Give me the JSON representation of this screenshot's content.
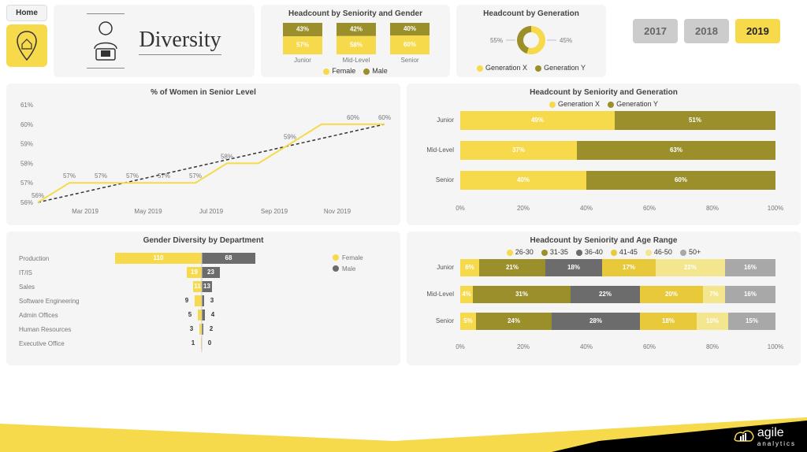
{
  "colors": {
    "yellow": "#f7d94c",
    "olive": "#9a8f2a",
    "gray": "#6c6c6c",
    "lightgray": "#a8a8a8",
    "bg": "#f5f5f5",
    "pale_yellow": "#f4e58f",
    "yellow2": "#e8c93a"
  },
  "nav": {
    "home_label": "Home"
  },
  "title": "Diversity",
  "years": {
    "options": [
      "2017",
      "2018",
      "2019"
    ],
    "active": "2019"
  },
  "seniority_gender": {
    "title": "Headcount by Seniority and Gender",
    "categories": [
      "Junior",
      "Mid-Level",
      "Senior"
    ],
    "male": [
      43,
      42,
      40
    ],
    "female": [
      57,
      58,
      60
    ],
    "legend": [
      "Female",
      "Male"
    ],
    "male_color": "#9a8f2a",
    "female_color": "#f7d94c"
  },
  "generation_donut": {
    "title": "Headcount by Generation",
    "left_pct": 55,
    "right_pct": 45,
    "legend": [
      "Generation X",
      "Generation Y"
    ],
    "x_color": "#f7d94c",
    "y_color": "#9a8f2a"
  },
  "women_senior": {
    "title": "% of Women in Senior Level",
    "ymin": 56,
    "ymax": 61,
    "ystep": 1,
    "months": [
      "",
      "Mar 2019",
      "",
      "May 2019",
      "",
      "Jul 2019",
      "",
      "Sep 2019",
      "",
      "Nov 2019",
      ""
    ],
    "values": [
      56,
      57,
      57,
      57,
      57,
      57,
      58,
      58,
      59,
      60,
      60,
      60
    ],
    "labels": [
      "56%",
      "57%",
      "57%",
      "57%",
      "57%",
      "57%",
      "58%",
      "",
      "59%",
      "",
      "60%",
      "60%"
    ],
    "line_color": "#f7d94c"
  },
  "seniority_generation": {
    "title": "Headcount by Seniority and Generation",
    "legend": [
      "Generation X",
      "Generation Y"
    ],
    "categories": [
      "Junior",
      "Mid-Level",
      "Senior"
    ],
    "genx": [
      49,
      37,
      40
    ],
    "geny": [
      51,
      63,
      60
    ],
    "x_color": "#f7d94c",
    "y_color": "#9a8f2a",
    "xticks": [
      0,
      20,
      40,
      60,
      80,
      100
    ]
  },
  "gender_dept": {
    "title": "Gender Diversity by Department",
    "legend": [
      "Female",
      "Male"
    ],
    "female_color": "#f7d94c",
    "male_color": "#6c6c6c",
    "categories": [
      "Production",
      "IT/IS",
      "Sales",
      "Software Engineering",
      "Admin Offices",
      "Human Resources",
      "Executive Office"
    ],
    "female": [
      110,
      19,
      11,
      9,
      5,
      3,
      1
    ],
    "male": [
      68,
      23,
      13,
      3,
      4,
      2,
      0
    ]
  },
  "seniority_age": {
    "title": "Headcount by Seniority and Age Range",
    "legend": [
      "26-30",
      "31-35",
      "36-40",
      "41-45",
      "46-50",
      "50+"
    ],
    "colors": [
      "#f7d94c",
      "#9a8f2a",
      "#6c6c6c",
      "#e8c93a",
      "#f4e58f",
      "#a8a8a8"
    ],
    "categories": [
      "Junior",
      "Mid-Level",
      "Senior"
    ],
    "rows": [
      [
        6,
        21,
        18,
        17,
        22,
        16
      ],
      [
        4,
        31,
        22,
        20,
        7,
        16
      ],
      [
        5,
        24,
        28,
        18,
        10,
        15
      ]
    ],
    "xticks": [
      0,
      20,
      40,
      60,
      80,
      100
    ]
  },
  "logo": {
    "brand": "agile",
    "sub": "analytics"
  }
}
